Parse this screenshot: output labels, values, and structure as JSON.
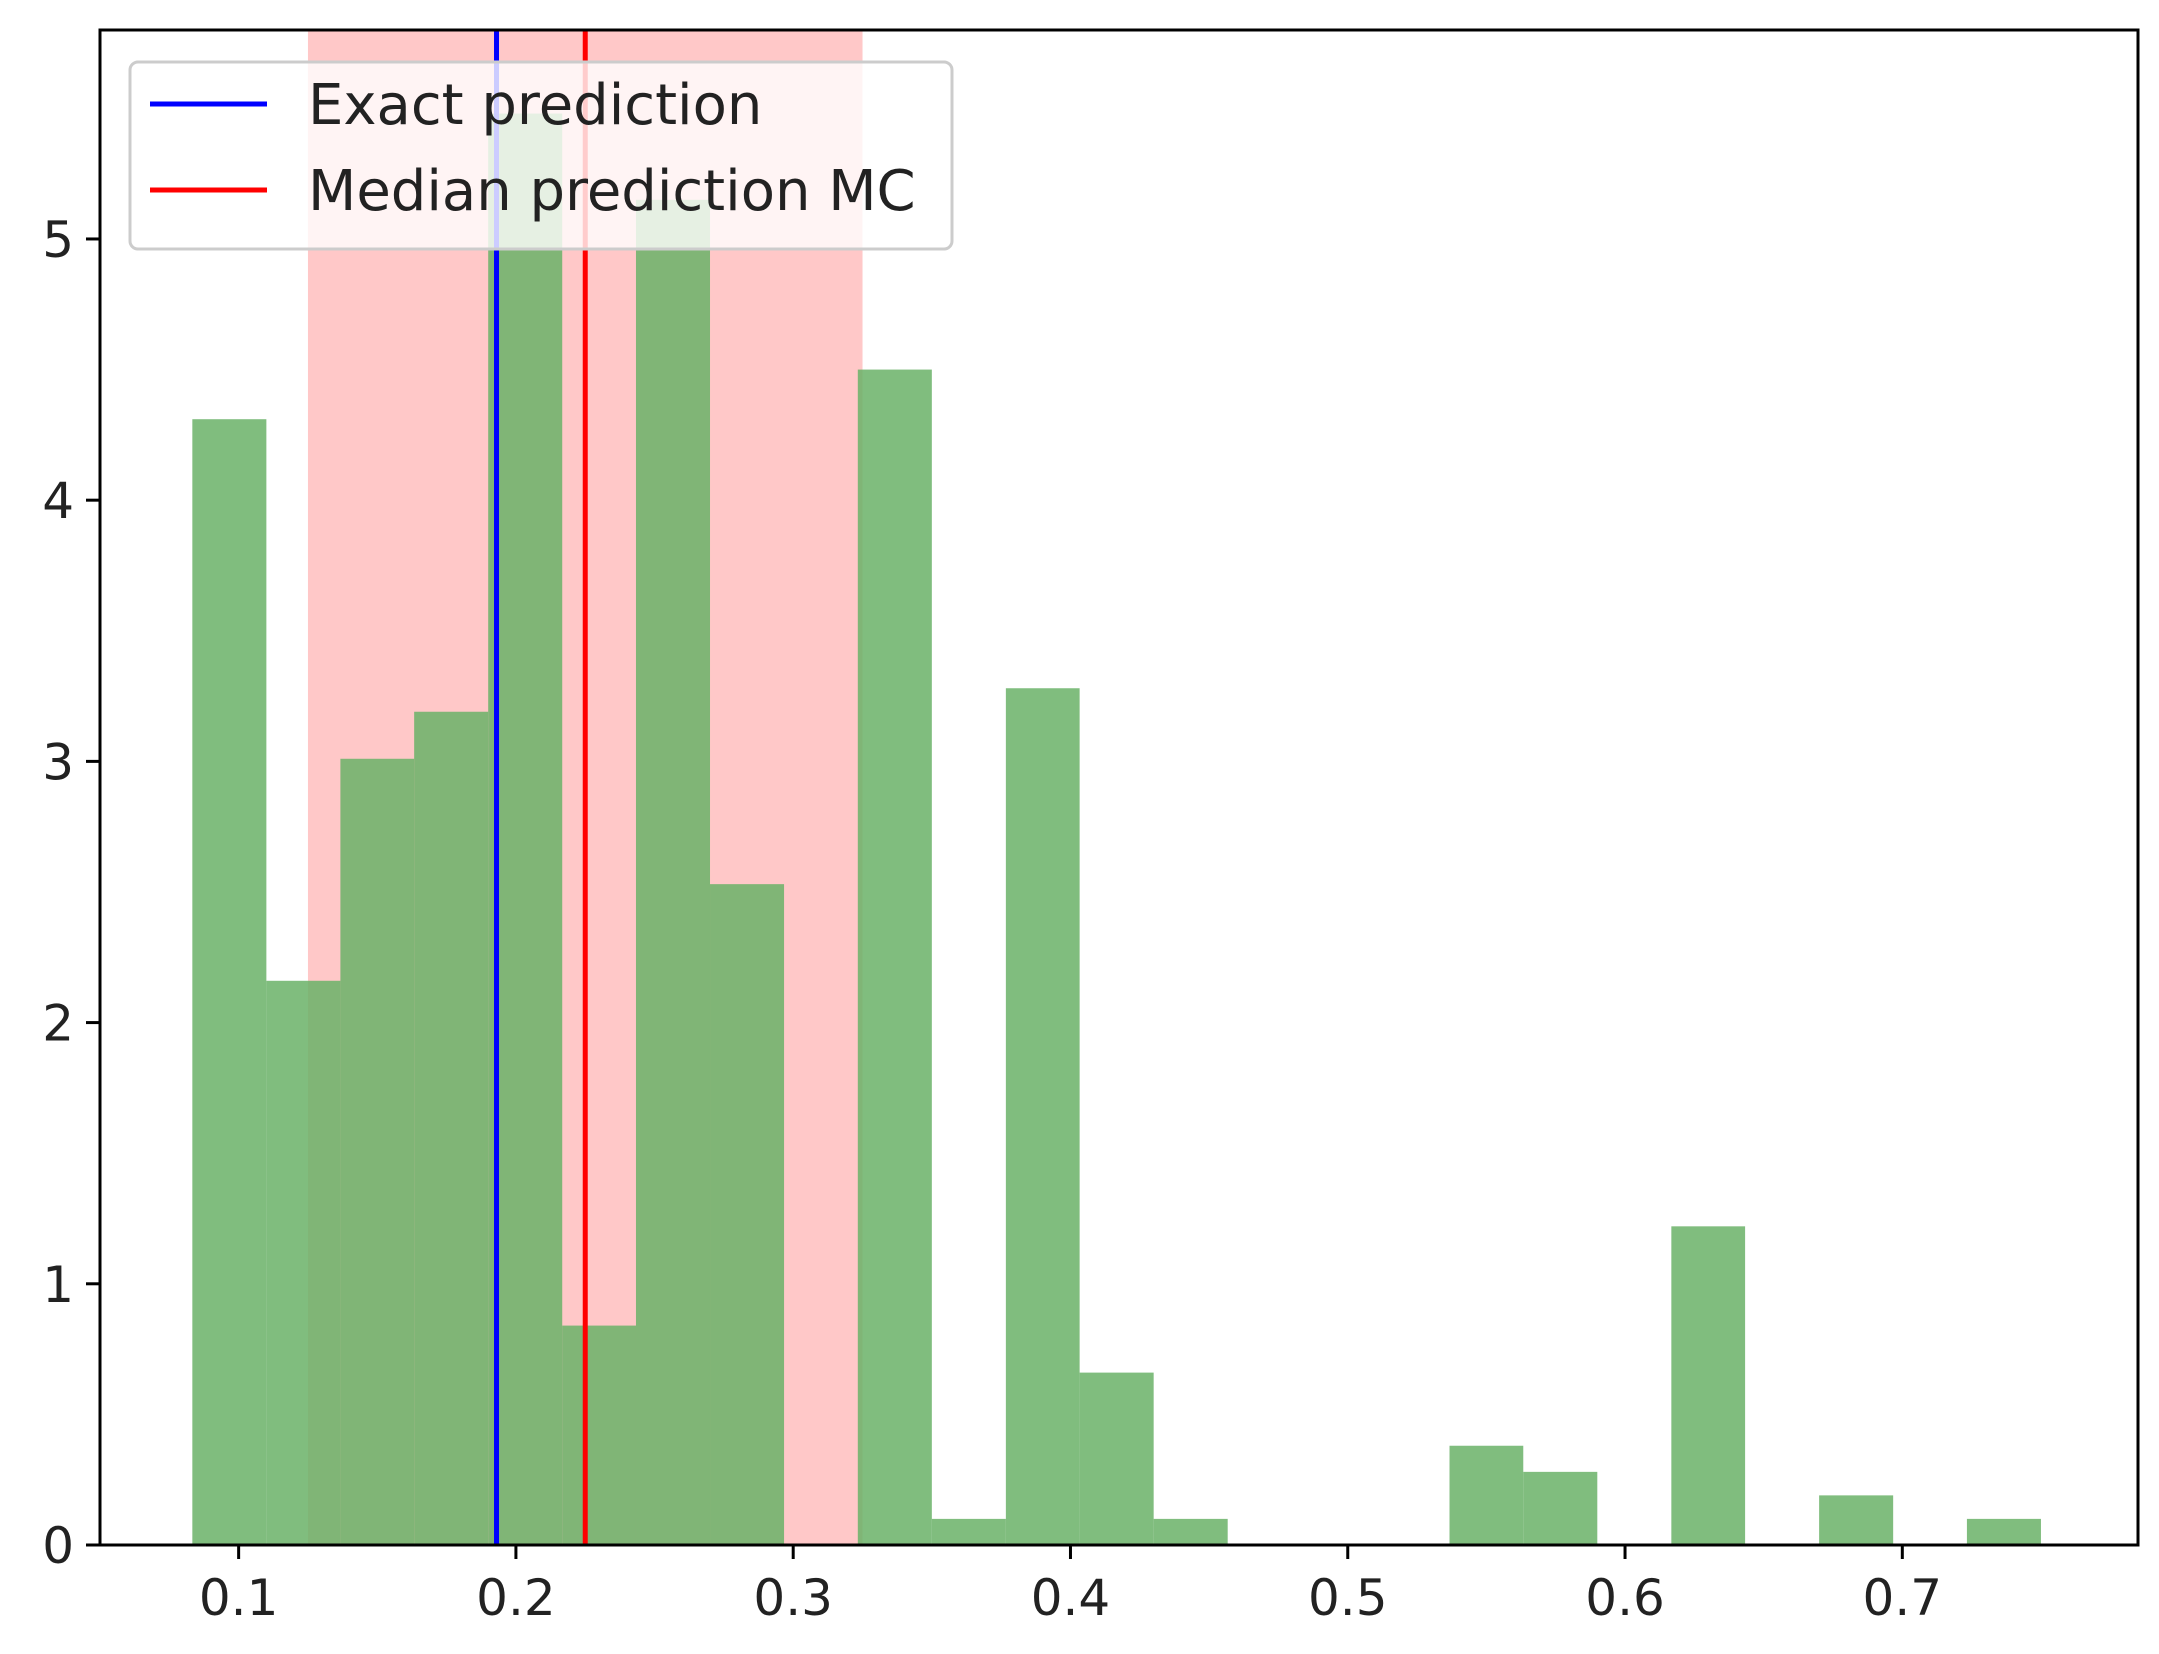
{
  "chart_data": {
    "type": "bar",
    "title": "",
    "xlabel": "",
    "ylabel": "",
    "xlim": [
      0.05,
      0.785
    ],
    "ylim": [
      0,
      5.8
    ],
    "grid": false,
    "legend_position": "top-left",
    "xticks": [
      0.1,
      0.2,
      0.3,
      0.4,
      0.5,
      0.6,
      0.7
    ],
    "xtick_labels": [
      "0.1",
      "0.2",
      "0.3",
      "0.4",
      "0.5",
      "0.6",
      "0.7"
    ],
    "yticks": [
      0,
      1,
      2,
      3,
      4,
      5
    ],
    "ytick_labels": [
      "0",
      "1",
      "2",
      "3",
      "4",
      "5"
    ],
    "histogram": {
      "color": "#6ab167",
      "bin_width": 0.0267,
      "bin_edges": [
        0.0833,
        0.11,
        0.1367,
        0.1633,
        0.19,
        0.2167,
        0.2433,
        0.27,
        0.2967,
        0.3233,
        0.35,
        0.3767,
        0.4033,
        0.43,
        0.4567,
        0.4833,
        0.51,
        0.5367,
        0.5633,
        0.59,
        0.6167,
        0.6433,
        0.67,
        0.6967,
        0.7233,
        0.75
      ],
      "values": [
        4.31,
        2.16,
        3.01,
        3.19,
        5.48,
        0.84,
        5.15,
        2.53,
        0.0,
        4.5,
        0.1,
        3.28,
        0.66,
        0.1,
        0.0,
        0.0,
        0.0,
        0.38,
        0.28,
        0.0,
        1.22,
        0.0,
        0.19,
        0.0,
        0.1
      ]
    },
    "interval_band": {
      "x_start": 0.125,
      "x_end": 0.325,
      "color": "#ffc8c8"
    },
    "vertical_lines": [
      {
        "name": "Exact prediction",
        "x": 0.193,
        "color": "#0000ff"
      },
      {
        "name": "Median prediction MC",
        "x": 0.225,
        "color": "#ff0000"
      }
    ]
  },
  "legend": {
    "items": [
      {
        "label": "Exact prediction",
        "color": "#0000ff"
      },
      {
        "label": "Median prediction MC",
        "color": "#ff0000"
      }
    ]
  }
}
